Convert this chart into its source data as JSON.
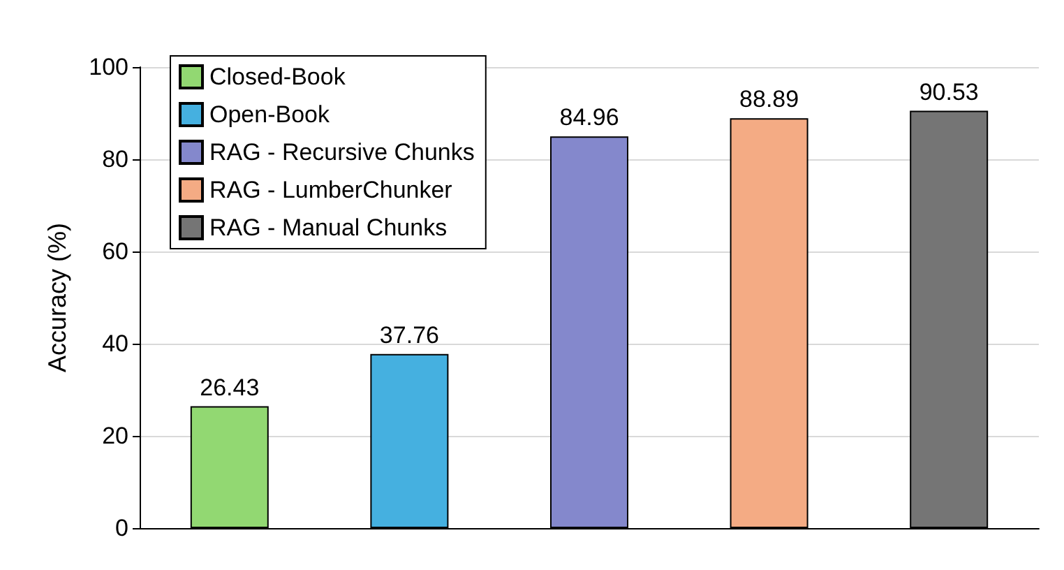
{
  "chart_data": {
    "type": "bar",
    "ylabel": "Accuracy (%)",
    "categories": [
      null,
      null,
      null,
      null,
      null
    ],
    "series": [
      {
        "name": "Closed-Book",
        "color": "#92d872",
        "values": [
          26.43,
          null,
          null,
          null,
          null
        ]
      },
      {
        "name": "Open-Book",
        "color": "#45b0e0",
        "values": [
          null,
          37.76,
          null,
          null,
          null
        ]
      },
      {
        "name": "RAG - Recursive Chunks",
        "color": "#8488cc",
        "values": [
          null,
          null,
          84.96,
          null,
          null
        ]
      },
      {
        "name": "RAG - LumberChunker",
        "color": "#f4ab84",
        "values": [
          null,
          null,
          null,
          88.89,
          null
        ]
      },
      {
        "name": "RAG - Manual Chunks",
        "color": "#757575",
        "values": [
          null,
          null,
          null,
          null,
          90.53
        ]
      }
    ],
    "ylim": [
      0,
      100
    ],
    "yticks": [
      0,
      20,
      40,
      60,
      80,
      100
    ],
    "grid": "y",
    "legend": "top left",
    "data_labels": true
  }
}
